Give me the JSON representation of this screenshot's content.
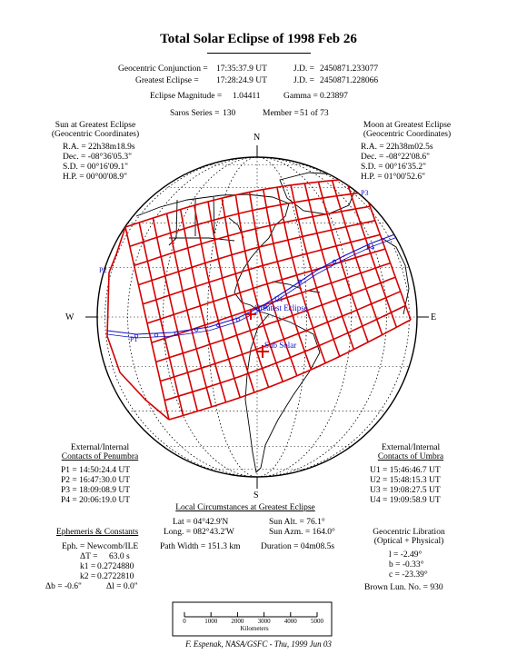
{
  "title": "Total Solar Eclipse of 1998 Feb 26",
  "header": {
    "conjunction_label": "Geocentric Conjunction =",
    "conjunction_value": "17:35:37.9 UT",
    "conjunction_jd_label": "J.D. =",
    "conjunction_jd": "2450871.233077",
    "greatest_label": "Greatest Eclipse =",
    "greatest_value": "17:28:24.9 UT",
    "greatest_jd_label": "J.D. =",
    "greatest_jd": "2450871.228066",
    "magnitude_label": "Eclipse Magnitude =",
    "magnitude_value": "1.04411",
    "gamma_label": "Gamma =",
    "gamma_value": "0.23897",
    "saros_label": "Saros Series =",
    "saros_value": "130",
    "member_label": "Member =",
    "member_value": "51 of 73"
  },
  "sun": {
    "heading1": "Sun at Greatest Eclipse",
    "heading2": "(Geocentric Coordinates)",
    "ra": "R.A. = 22h38m18.9s",
    "dec": "Dec. = -08°36'05.3\"",
    "sd": "S.D. =  00°16'09.1\"",
    "hp": "H.P. =  00°00'08.9\""
  },
  "moon": {
    "heading1": "Moon at Greatest Eclipse",
    "heading2": "(Geocentric Coordinates)",
    "ra": "R.A. = 22h38m02.5s",
    "dec": "Dec. = -08°22'08.6\"",
    "sd": "S.D. =  00°16'35.2\"",
    "hp": "H.P. =  01°00'52.6\""
  },
  "map": {
    "north": "N",
    "south": "S",
    "east": "E",
    "west": "W",
    "greatest_eclipse": "Greatest Eclipse",
    "sub_solar": "Sub Solar",
    "p1": "P1",
    "p2": "P2",
    "p3": "P3",
    "p4": "P4",
    "u1": "U1",
    "colors": {
      "path": "#d40000",
      "centerline": "#1010c8",
      "grid": "#000000"
    }
  },
  "penumbra": {
    "heading1": "External/Internal",
    "heading2": "Contacts of Penumbra",
    "p1": "P1 = 14:50:24.4 UT",
    "p2": "P2 = 16:47:30.0 UT",
    "p3": "P3 = 18:09:08.9 UT",
    "p4": "P4 = 20:06:19.0 UT"
  },
  "umbra": {
    "heading1": "External/Internal",
    "heading2": "Contacts of Umbra",
    "u1": "U1 = 15:46:46.7 UT",
    "u2": "U2 = 15:48:15.3 UT",
    "u3": "U3 = 19:08:27.5 UT",
    "u4": "U4 = 19:09:58.9 UT"
  },
  "local": {
    "heading": "Local Circumstances at Greatest Eclipse",
    "lat": "Lat =  04°42.9'N",
    "long": "Long. = 082°43.2'W",
    "path_width": "Path Width = 151.3 km",
    "sun_alt": "Sun Alt. =   76.1°",
    "sun_azm": "Sun Azm. = 164.0°",
    "duration": "Duration =  04m08.5s"
  },
  "ephemeris": {
    "heading": "Ephemeris & Constants",
    "eph": "Eph. = Newcomb/ILE",
    "dt_label": "ΔT =",
    "dt_value": "63.0  s",
    "k1_label": "k1 =",
    "k1_value": "0.2724880",
    "k2_label": "k2 =",
    "k2_value": "0.2722810",
    "db": "Δb =  -0.6\"",
    "dl": "Δl =    0.0\""
  },
  "libration": {
    "heading1": "Geocentric Libration",
    "heading2": "(Optical + Physical)",
    "l": "l =    -2.49°",
    "b": "b =   -0.33°",
    "c": "c =  -23.39°",
    "brown": "Brown Lun. No. =     930"
  },
  "scale": {
    "ticks": [
      "0",
      "1000",
      "2000",
      "3000",
      "4000",
      "5000"
    ],
    "label": "Kilometers"
  },
  "credit": "F. Espenak, NASA/GSFC - Thu, 1999 Jun 03"
}
